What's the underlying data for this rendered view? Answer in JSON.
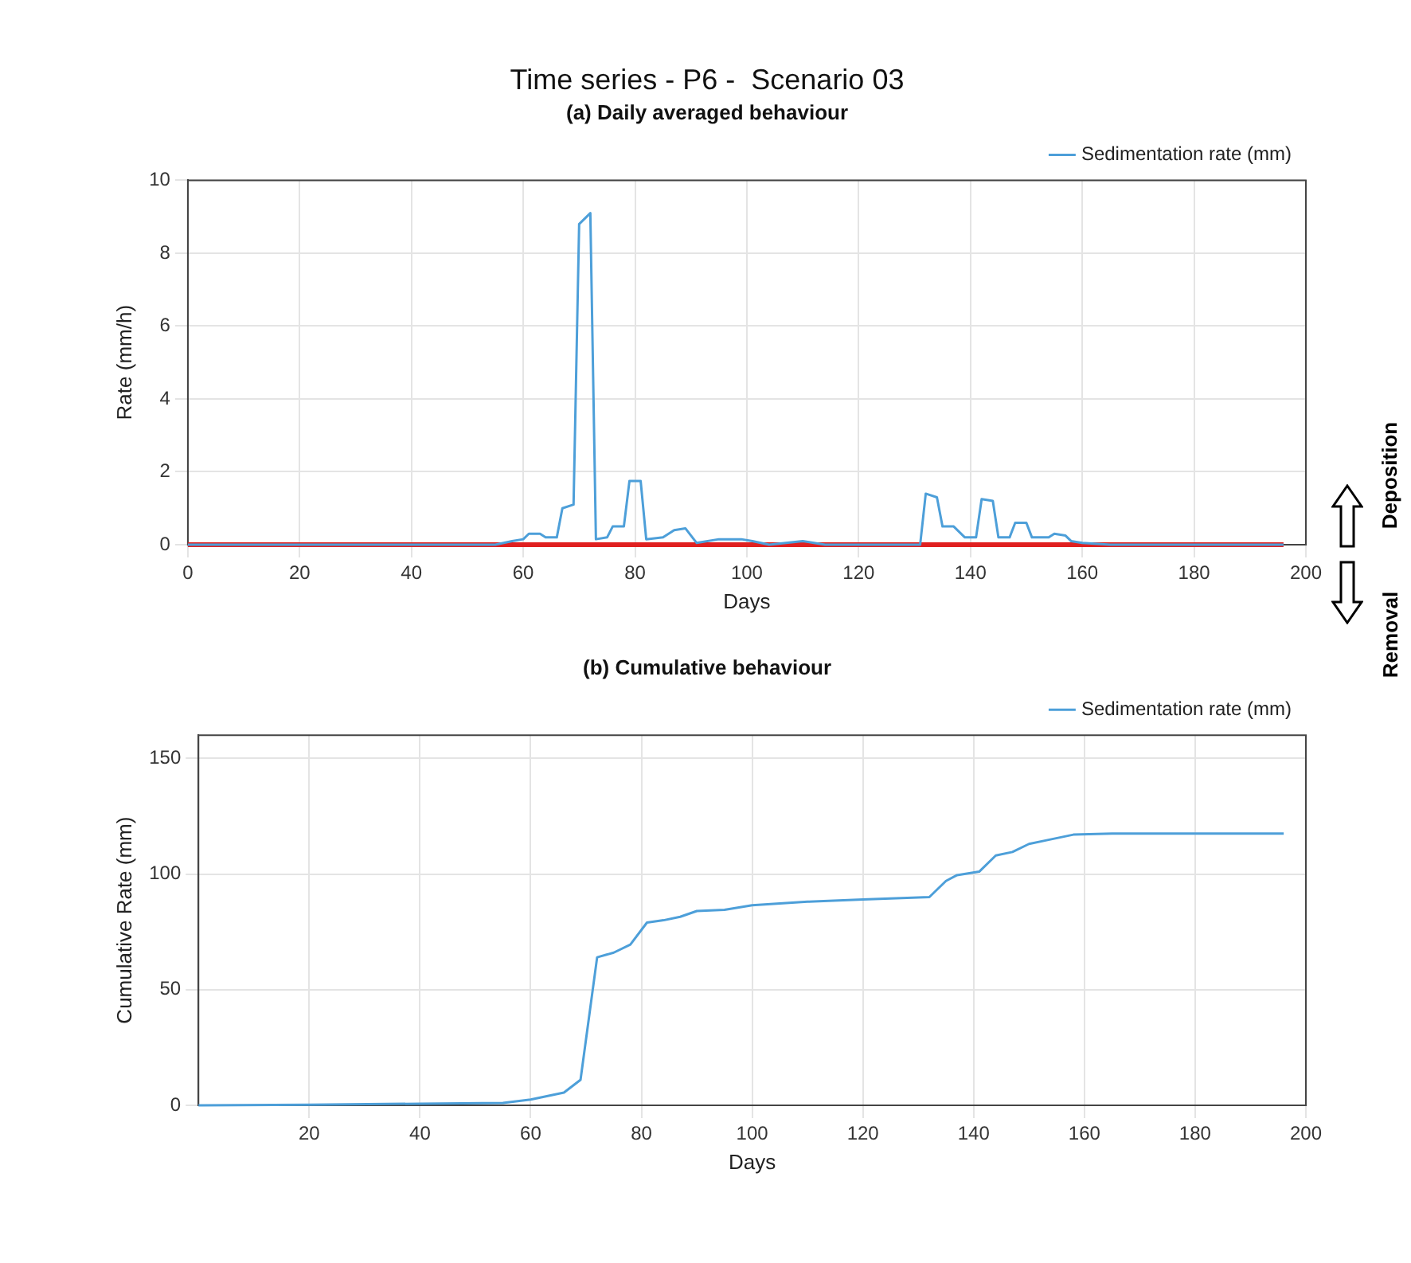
{
  "chart_data": [
    {
      "type": "line",
      "title": "Time series - P6 -  Scenario 03",
      "subtitle": "(a) Daily averaged behaviour",
      "xlabel": "Days",
      "ylabel": "Rate (mm/h)",
      "xlim": [
        0,
        200
      ],
      "xticks": [
        0,
        20,
        40,
        60,
        80,
        100,
        120,
        140,
        160,
        180,
        200
      ],
      "ylim": [
        0,
        10
      ],
      "yticks": [
        0,
        2,
        4,
        6,
        8,
        10
      ],
      "grid": true,
      "legend": "top right",
      "series": [
        {
          "name": "Sedimentation rate (mm)",
          "color": "#4d9fd9",
          "x": [
            0,
            55,
            58,
            60,
            61,
            63,
            64,
            66,
            67,
            69,
            70,
            72,
            73,
            75,
            76,
            78,
            79,
            81,
            82,
            85,
            87,
            89,
            91,
            95,
            99,
            101,
            104,
            110,
            114,
            131,
            132,
            134,
            135,
            137,
            139,
            141,
            142,
            144,
            145,
            147,
            148,
            150,
            151,
            154,
            155,
            157,
            158,
            160,
            165,
            196
          ],
          "values": [
            0,
            0,
            0.1,
            0.15,
            0.3,
            0.3,
            0.2,
            0.2,
            1.0,
            1.1,
            8.8,
            9.1,
            0.15,
            0.2,
            0.5,
            0.5,
            1.75,
            1.75,
            0.15,
            0.2,
            0.4,
            0.45,
            0.05,
            0.15,
            0.15,
            0.1,
            0,
            0.1,
            0,
            0,
            1.4,
            1.3,
            0.5,
            0.5,
            0.2,
            0.2,
            1.25,
            1.2,
            0.2,
            0.2,
            0.6,
            0.6,
            0.2,
            0.2,
            0.3,
            0.25,
            0.1,
            0.05,
            0,
            0
          ]
        },
        {
          "color": "#e02020",
          "x": [
            0,
            196
          ],
          "values": [
            0,
            0
          ]
        }
      ],
      "annotations": [
        "Deposition",
        "Removal"
      ]
    },
    {
      "type": "line",
      "title": "(b) Cumulative behaviour",
      "xlabel": "Days",
      "ylabel": "Cumulative Rate (mm)",
      "xlim": [
        0,
        200
      ],
      "xticks": [
        20,
        40,
        60,
        80,
        100,
        120,
        140,
        160,
        180,
        200
      ],
      "ylim": [
        0,
        160
      ],
      "yticks": [
        0,
        50,
        100,
        150
      ],
      "grid": true,
      "legend": "top right",
      "series": [
        {
          "name": "Sedimentation rate (mm)",
          "color": "#4d9fd9",
          "x": [
            0,
            20,
            40,
            55,
            60,
            66,
            69,
            72,
            75,
            78,
            81,
            84,
            87,
            90,
            95,
            100,
            110,
            120,
            132,
            135,
            137,
            141,
            144,
            147,
            150,
            153,
            158,
            165,
            196
          ],
          "values": [
            0,
            0.3,
            0.7,
            1,
            2.5,
            5.5,
            11,
            64,
            66,
            69.5,
            79,
            80,
            81.5,
            84,
            84.5,
            86.5,
            88,
            89,
            90,
            97,
            99.5,
            101,
            108,
            109.5,
            113,
            114.5,
            117,
            117.5,
            117.5
          ]
        }
      ]
    }
  ]
}
